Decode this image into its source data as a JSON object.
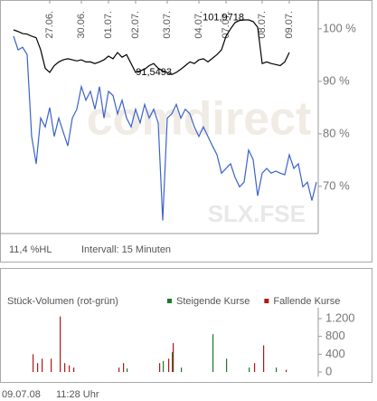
{
  "chart_data": [
    {
      "type": "line",
      "xlim": [
        0,
        67
      ],
      "ylim": [
        61,
        105.5
      ],
      "xticks": [
        {
          "value": 8,
          "label": "27.06."
        },
        {
          "value": 15,
          "label": "30.06."
        },
        {
          "value": 21,
          "label": "01.07."
        },
        {
          "value": 27,
          "label": "02.07."
        },
        {
          "value": 34,
          "label": "03.07."
        },
        {
          "value": 41,
          "label": "04.07."
        },
        {
          "value": 47,
          "label": "07.07."
        },
        {
          "value": 55,
          "label": "08.07."
        },
        {
          "value": 61,
          "label": "09.07."
        }
      ],
      "yticks": [
        {
          "value": 100,
          "label": "100 %"
        },
        {
          "value": 90,
          "label": "90 %"
        },
        {
          "value": 80,
          "label": "80 %"
        },
        {
          "value": 70,
          "label": "70 %"
        }
      ],
      "series": [
        {
          "color": "#000000",
          "values": [
            99.8,
            99.5,
            99.1,
            99.0,
            98.6,
            98.3,
            96.0,
            92.5,
            91.7,
            93.0,
            93.7,
            94.1,
            94.3,
            94.1,
            93.9,
            94.1,
            93.7,
            93.7,
            93.4,
            93.7,
            94.1,
            94.8,
            94.3,
            95.5,
            94.6,
            95.1,
            93.4,
            91.7,
            92.0,
            92.3,
            93.0,
            93.4,
            92.5,
            92.0,
            91.7,
            91.3,
            91.7,
            92.3,
            93.0,
            93.7,
            93.4,
            94.1,
            94.3,
            93.7,
            94.4,
            95.1,
            96.0,
            98.6,
            100.0,
            101.2,
            101.6,
            101.7,
            101.7,
            101.4,
            100.3,
            93.4,
            93.7,
            93.4,
            93.2,
            93.0,
            93.7,
            95.5,
            null,
            null,
            null,
            null,
            null,
            null
          ]
        },
        {
          "color": "#3a62c8",
          "values": [
            98.6,
            96.0,
            96.5,
            95.1,
            79.5,
            74.3,
            83.0,
            81.3,
            85.0,
            79.5,
            83.0,
            80.3,
            77.7,
            83.0,
            84.7,
            89.0,
            86.4,
            88.1,
            84.7,
            89.0,
            83.0,
            88.1,
            87.3,
            83.8,
            86.4,
            83.0,
            81.3,
            84.7,
            82.1,
            85.6,
            83.0,
            84.7,
            82.1,
            63.5,
            83.0,
            83.8,
            85.6,
            83.0,
            84.7,
            83.8,
            81.3,
            79.5,
            81.3,
            79.5,
            77.7,
            76.0,
            72.5,
            73.4,
            74.3,
            71.7,
            69.9,
            70.8,
            76.9,
            75.1,
            68.2,
            72.5,
            73.4,
            72.5,
            72.9,
            72.5,
            72.2,
            76.0,
            73.4,
            74.3,
            69.9,
            70.8,
            67.3,
            70.8
          ]
        }
      ],
      "annotations": [
        {
          "text": "101,9718",
          "x": 51,
          "y": 101.9718
        },
        {
          "text": "91,5493",
          "x": 35,
          "y": 91.5493
        }
      ],
      "watermark": [
        "comdirect",
        "SLX.FSE"
      ],
      "notes": [
        "11,4 %HL",
        "Intervall: 15 Minuten"
      ]
    },
    {
      "type": "bar",
      "title": "Stück-Volumen (rot-grün)",
      "xlim": [
        0,
        67
      ],
      "ylim": [
        0,
        1350
      ],
      "yticks": [
        {
          "value": 1200,
          "label": "1.200"
        },
        800,
        400,
        0
      ],
      "series": [
        {
          "name": "Steigende Kurse",
          "color": "#1a7a2e",
          "values": [
            null,
            null,
            null,
            null,
            null,
            null,
            null,
            null,
            null,
            null,
            null,
            null,
            null,
            null,
            null,
            null,
            null,
            null,
            null,
            null,
            null,
            null,
            null,
            null,
            null,
            80,
            null,
            null,
            null,
            null,
            null,
            null,
            null,
            250,
            null,
            450,
            null,
            100,
            null,
            null,
            null,
            null,
            null,
            null,
            850,
            null,
            null,
            300,
            null,
            null,
            null,
            null,
            100,
            null,
            null,
            null,
            null,
            null,
            100,
            null,
            null,
            null,
            null,
            null,
            null,
            null,
            null,
            null
          ]
        },
        {
          "name": "Fallende Kurse",
          "color": "#b01818",
          "values": [
            null,
            null,
            null,
            null,
            400,
            200,
            300,
            null,
            300,
            null,
            1250,
            200,
            150,
            100,
            null,
            null,
            null,
            null,
            null,
            null,
            null,
            null,
            null,
            100,
            200,
            null,
            null,
            null,
            null,
            null,
            null,
            null,
            200,
            null,
            300,
            650,
            null,
            null,
            null,
            null,
            null,
            null,
            null,
            null,
            null,
            null,
            null,
            null,
            null,
            null,
            null,
            null,
            null,
            200,
            null,
            600,
            null,
            null,
            null,
            null,
            50,
            null,
            null,
            null,
            null,
            null,
            null,
            null
          ]
        }
      ]
    }
  ],
  "timestamp": [
    "09.07.08",
    "11:28 Uhr"
  ]
}
